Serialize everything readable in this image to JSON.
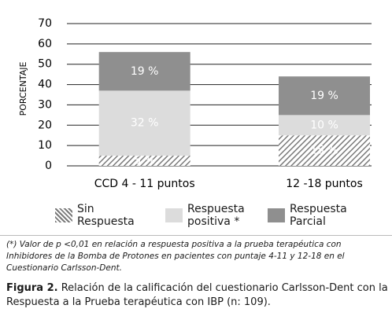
{
  "chart_data": {
    "type": "bar",
    "stacked": true,
    "ylabel": "PORCENTAJE",
    "categories": [
      "CCD 4 - 11 puntos",
      "12 -18 puntos"
    ],
    "series": [
      {
        "name": "Sin Respuesta",
        "color": "#7a7a7a",
        "hatch": true,
        "values": [
          5,
          15
        ],
        "value_labels": [
          "5 %",
          "15 %"
        ]
      },
      {
        "name": "Respuesta positiva *",
        "color": "#dcdcdc",
        "values": [
          32,
          10
        ],
        "value_labels": [
          "32 %",
          "10 %"
        ]
      },
      {
        "name": "Respuesta Parcial",
        "color": "#8f8f8f",
        "values": [
          19,
          19
        ],
        "value_labels": [
          "19 %",
          "19 %"
        ]
      }
    ],
    "ylim": [
      0,
      70
    ],
    "yticks": [
      0,
      10,
      20,
      30,
      40,
      50,
      60,
      70
    ],
    "grid": true
  },
  "footnote": "(*) Valor de p <0,01 en relación a respuesta positiva a la prueba terapéutica con Inhibidores de la Bomba de Protones en pacientes con puntaje 4-11 y 12-18 en el Cuestionario Carlsson-Dent.",
  "caption": {
    "label": "Figura 2.",
    "text": "Relación de la calificación del cuestionario Carlsson-Dent con la Respuesta a la Prueba terapéutica con IBP (n: 109)."
  }
}
